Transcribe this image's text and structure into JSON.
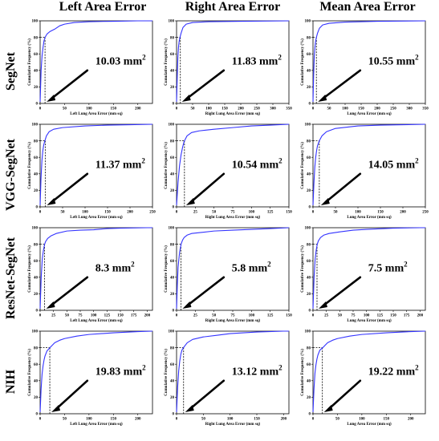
{
  "figure": {
    "columns": [
      "Left Area Error",
      "Right Area Error",
      "Mean Area Error"
    ],
    "rows": [
      "SegNet",
      "VGG-SegNet",
      "ResNet-SegNet",
      "NIH"
    ]
  },
  "chart_data": [
    {
      "type": "line",
      "row": "SegNet",
      "column": "Left Area Error",
      "xlabel": "Left Lung Area Error (mm sq)",
      "ylabel": "Cumulative Frequency (%)",
      "xlim": [
        0,
        230
      ],
      "xticks": [
        0,
        50,
        100,
        150,
        200
      ],
      "ylim": [
        0,
        100
      ],
      "yticks": [
        0,
        20,
        40,
        60,
        80,
        100
      ],
      "annotation": {
        "value": "10.03",
        "unit": "mm",
        "exponent": "2"
      },
      "threshold": {
        "x": 10.03,
        "y": 80
      },
      "series": [
        {
          "x": [
            0,
            2,
            4,
            6,
            8,
            10,
            14,
            20,
            30,
            40,
            50,
            70,
            100,
            150,
            200,
            230
          ],
          "y": [
            2,
            40,
            58,
            68,
            76,
            80,
            84,
            87,
            90,
            94,
            96,
            98,
            99,
            99.5,
            100,
            100
          ]
        }
      ]
    },
    {
      "type": "line",
      "row": "SegNet",
      "column": "Right Area Error",
      "xlabel": "Right Lung Area Error (mm sq)",
      "ylabel": "Cumulative Frequency (%)",
      "xlim": [
        0,
        350
      ],
      "xticks": [
        0,
        50,
        100,
        150,
        200,
        250,
        300,
        350
      ],
      "ylim": [
        0,
        100
      ],
      "yticks": [
        0,
        20,
        40,
        60,
        80,
        100
      ],
      "annotation": {
        "value": "11.83",
        "unit": "mm",
        "exponent": "2"
      },
      "threshold": {
        "x": 11.83,
        "y": 80
      },
      "series": [
        {
          "x": [
            0,
            2,
            4,
            6,
            8,
            10,
            14,
            20,
            30,
            50,
            100,
            200,
            350
          ],
          "y": [
            2,
            30,
            55,
            68,
            75,
            79,
            85,
            92,
            96,
            98,
            99,
            99.5,
            100
          ]
        }
      ]
    },
    {
      "type": "line",
      "row": "SegNet",
      "column": "Mean Area Error",
      "xlabel": "Lung Area Error (mm sq)",
      "ylabel": "Cumulative Frequency (%)",
      "xlim": [
        0,
        350
      ],
      "xticks": [
        0,
        50,
        100,
        150,
        200,
        250,
        300,
        350
      ],
      "ylim": [
        0,
        100
      ],
      "yticks": [
        0,
        20,
        40,
        60,
        80,
        100
      ],
      "annotation": {
        "value": "10.55",
        "unit": "mm",
        "exponent": "2"
      },
      "threshold": {
        "x": 10.55,
        "y": 80
      },
      "series": [
        {
          "x": [
            0,
            2,
            4,
            6,
            8,
            10,
            14,
            20,
            30,
            50,
            100,
            200,
            350
          ],
          "y": [
            2,
            35,
            57,
            68,
            75,
            79,
            85,
            91,
            95,
            97,
            98.5,
            99.5,
            100
          ]
        }
      ]
    },
    {
      "type": "line",
      "row": "VGG-SegNet",
      "column": "Left Area Error",
      "xlabel": "Left Lung Area Error (mm sq)",
      "ylabel": "Cumulative Frequency (%)",
      "xlim": [
        0,
        250
      ],
      "xticks": [
        0,
        50,
        100,
        150,
        200,
        250
      ],
      "ylim": [
        0,
        100
      ],
      "yticks": [
        0,
        20,
        40,
        60,
        80,
        100
      ],
      "annotation": {
        "value": "11.37",
        "unit": "mm",
        "exponent": "2"
      },
      "threshold": {
        "x": 11.37,
        "y": 80
      },
      "series": [
        {
          "x": [
            0,
            2,
            4,
            6,
            8,
            10,
            14,
            20,
            30,
            50,
            100,
            150,
            200,
            250
          ],
          "y": [
            2,
            35,
            56,
            68,
            75,
            79,
            86,
            91,
            94,
            96,
            98,
            99,
            99.5,
            100
          ]
        }
      ]
    },
    {
      "type": "line",
      "row": "VGG-SegNet",
      "column": "Right Area Error",
      "xlabel": "Right Lung Area Error (mm sq)",
      "ylabel": "Cumulative Frequency (%)",
      "xlim": [
        0,
        150
      ],
      "xticks": [
        0,
        25,
        50,
        75,
        100,
        125,
        150
      ],
      "ylim": [
        0,
        100
      ],
      "yticks": [
        0,
        20,
        40,
        60,
        80,
        100
      ],
      "annotation": {
        "value": "10.54",
        "unit": "mm",
        "exponent": "2"
      },
      "threshold": {
        "x": 10.54,
        "y": 80
      },
      "series": [
        {
          "x": [
            0,
            2,
            4,
            6,
            8,
            10,
            14,
            20,
            30,
            50,
            75,
            100,
            125,
            150
          ],
          "y": [
            2,
            30,
            50,
            63,
            72,
            79,
            86,
            90,
            92,
            94,
            96,
            98,
            99,
            100
          ]
        }
      ]
    },
    {
      "type": "line",
      "row": "VGG-SegNet",
      "column": "Mean Area Error",
      "xlabel": "Lung Area Error (mm sq)",
      "ylabel": "Cumulative Frequency (%)",
      "xlim": [
        0,
        250
      ],
      "xticks": [
        0,
        50,
        100,
        150,
        200,
        250
      ],
      "ylim": [
        0,
        100
      ],
      "yticks": [
        0,
        20,
        40,
        60,
        80,
        100
      ],
      "annotation": {
        "value": "14.05",
        "unit": "mm",
        "exponent": "2"
      },
      "threshold": {
        "x": 14.05,
        "y": 80
      },
      "series": [
        {
          "x": [
            0,
            2,
            4,
            6,
            8,
            10,
            14,
            20,
            30,
            50,
            100,
            150,
            200,
            250
          ],
          "y": [
            2,
            28,
            48,
            60,
            68,
            74,
            80,
            86,
            91,
            95,
            98,
            99,
            99.5,
            100
          ]
        }
      ]
    },
    {
      "type": "line",
      "row": "ResNet-SegNet",
      "column": "Left Area Error",
      "xlabel": "Left Lung Area Error (mm sq)",
      "ylabel": "Cumulative Frequency (%)",
      "xlim": [
        0,
        210
      ],
      "xticks": [
        0,
        25,
        50,
        75,
        100,
        125,
        150,
        175,
        200
      ],
      "ylim": [
        0,
        100
      ],
      "yticks": [
        0,
        20,
        40,
        60,
        80,
        100
      ],
      "annotation": {
        "value": "8.3",
        "unit": "mm",
        "exponent": "2"
      },
      "threshold": {
        "x": 8.3,
        "y": 80
      },
      "series": [
        {
          "x": [
            0,
            2,
            4,
            6,
            8,
            10,
            14,
            20,
            30,
            50,
            75,
            100,
            125,
            150,
            200,
            210
          ],
          "y": [
            2,
            40,
            62,
            72,
            79,
            83,
            87,
            90,
            93,
            96,
            97,
            97.5,
            99,
            99.5,
            100,
            100
          ]
        }
      ]
    },
    {
      "type": "line",
      "row": "ResNet-SegNet",
      "column": "Right Area Error",
      "xlabel": "Right Lung Area Error (mm sq)",
      "ylabel": "Cumulative Frequency (%)",
      "xlim": [
        0,
        150
      ],
      "xticks": [
        0,
        25,
        50,
        75,
        100,
        125,
        150
      ],
      "ylim": [
        0,
        100
      ],
      "yticks": [
        0,
        20,
        40,
        60,
        80,
        100
      ],
      "annotation": {
        "value": "5.8",
        "unit": "mm",
        "exponent": "2"
      },
      "threshold": {
        "x": 5.8,
        "y": 80
      },
      "series": [
        {
          "x": [
            0,
            1,
            2,
            4,
            6,
            8,
            10,
            14,
            20,
            30,
            50,
            75,
            100,
            125,
            150
          ],
          "y": [
            2,
            30,
            52,
            70,
            80,
            85,
            88,
            91,
            93,
            94,
            96,
            97,
            98,
            99,
            100
          ]
        }
      ]
    },
    {
      "type": "line",
      "row": "ResNet-SegNet",
      "column": "Mean Area Error",
      "xlabel": "Lung Area Error (mm sq)",
      "ylabel": "Cumulative Frequency (%)",
      "xlim": [
        0,
        210
      ],
      "xticks": [
        0,
        25,
        50,
        75,
        100,
        125,
        150,
        175,
        200
      ],
      "ylim": [
        0,
        100
      ],
      "yticks": [
        0,
        20,
        40,
        60,
        80,
        100
      ],
      "annotation": {
        "value": "7.5",
        "unit": "mm",
        "exponent": "2"
      },
      "threshold": {
        "x": 7.5,
        "y": 80
      },
      "series": [
        {
          "x": [
            0,
            2,
            4,
            6,
            8,
            10,
            14,
            20,
            30,
            50,
            75,
            100,
            150,
            200,
            210
          ],
          "y": [
            2,
            40,
            62,
            73,
            80,
            84,
            88,
            91,
            93,
            95,
            97,
            98,
            99.5,
            100,
            100
          ]
        }
      ]
    },
    {
      "type": "line",
      "row": "NIH",
      "column": "Left Area Error",
      "xlabel": "Left Lung Area Error (mm sq)",
      "ylabel": "Cumulative Frequency (%)",
      "xlim": [
        0,
        230
      ],
      "xticks": [
        0,
        50,
        100,
        150,
        200
      ],
      "ylim": [
        0,
        100
      ],
      "yticks": [
        0,
        20,
        40,
        60,
        80,
        100
      ],
      "annotation": {
        "value": "19.83",
        "unit": "mm",
        "exponent": "2"
      },
      "threshold": {
        "x": 19.83,
        "y": 80
      },
      "series": [
        {
          "x": [
            0,
            2,
            4,
            6,
            8,
            10,
            14,
            20,
            30,
            40,
            50,
            75,
            100,
            150,
            200,
            230
          ],
          "y": [
            2,
            30,
            48,
            58,
            65,
            70,
            76,
            80,
            86,
            89,
            91,
            94,
            96,
            98,
            99.5,
            100
          ]
        }
      ]
    },
    {
      "type": "line",
      "row": "NIH",
      "column": "Right Area Error",
      "xlabel": "Right Lung Area Error (mm sq)",
      "ylabel": "Cumulative Frequency (%)",
      "xlim": [
        0,
        210
      ],
      "xticks": [
        0,
        50,
        100,
        150,
        200
      ],
      "ylim": [
        0,
        100
      ],
      "yticks": [
        0,
        20,
        40,
        60,
        80,
        100
      ],
      "annotation": {
        "value": "13.12",
        "unit": "mm",
        "exponent": "2"
      },
      "threshold": {
        "x": 13.12,
        "y": 80
      },
      "series": [
        {
          "x": [
            0,
            2,
            4,
            6,
            8,
            10,
            14,
            20,
            30,
            50,
            75,
            100,
            150,
            200,
            210
          ],
          "y": [
            2,
            32,
            52,
            64,
            72,
            77,
            81,
            86,
            90,
            93,
            95,
            97,
            99,
            100,
            100
          ]
        }
      ]
    },
    {
      "type": "line",
      "row": "NIH",
      "column": "Mean Area Error",
      "xlabel": "Lung Area Error (mm sq)",
      "ylabel": "Cumulative Frequency (%)",
      "xlim": [
        0,
        230
      ],
      "xticks": [
        0,
        50,
        100,
        150,
        200
      ],
      "ylim": [
        0,
        100
      ],
      "yticks": [
        0,
        20,
        40,
        60,
        80,
        100
      ],
      "annotation": {
        "value": "19.22",
        "unit": "mm",
        "exponent": "2"
      },
      "threshold": {
        "x": 19.22,
        "y": 80
      },
      "series": [
        {
          "x": [
            0,
            2,
            4,
            6,
            8,
            10,
            14,
            20,
            30,
            40,
            50,
            75,
            100,
            150,
            200,
            230
          ],
          "y": [
            2,
            30,
            49,
            59,
            66,
            71,
            77,
            80,
            86,
            89,
            91,
            94,
            96,
            98,
            99.5,
            100
          ]
        }
      ]
    }
  ],
  "colors": {
    "curve": "#3333ff",
    "threshold": "#000000",
    "axis": "#000000"
  }
}
